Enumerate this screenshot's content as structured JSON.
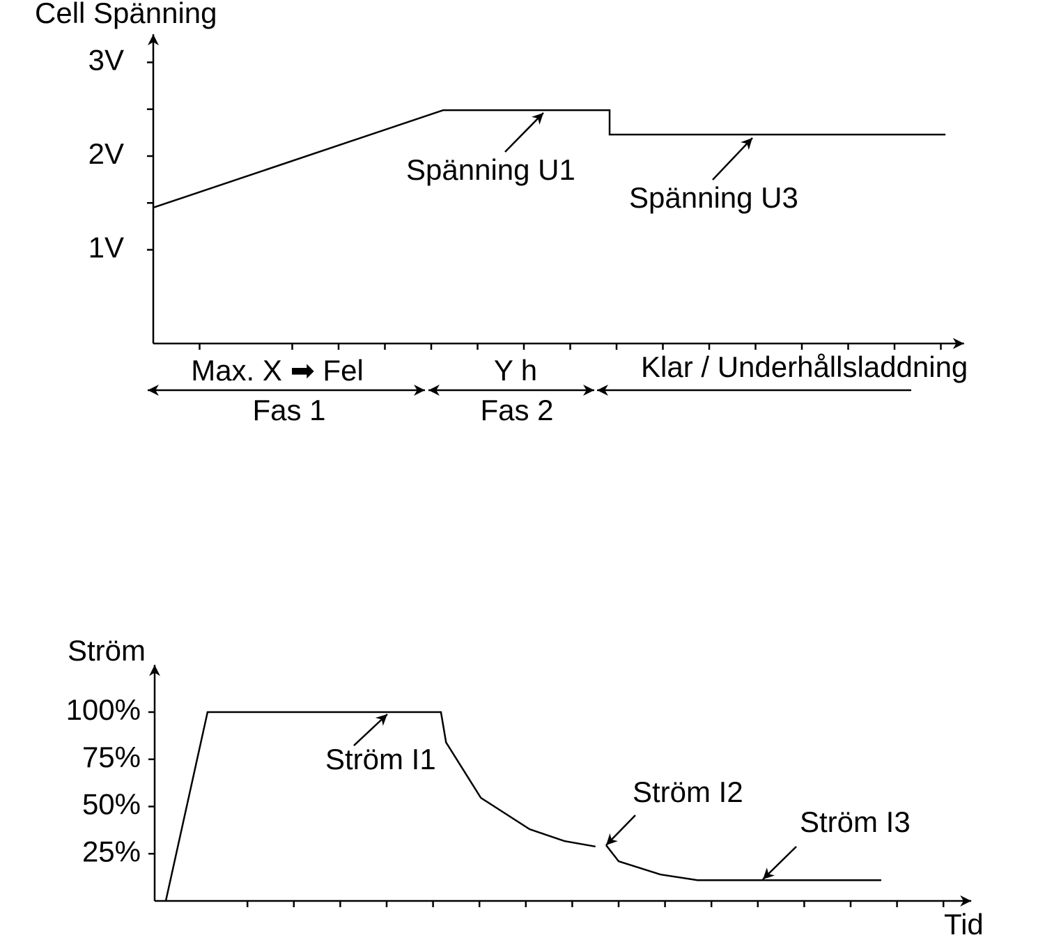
{
  "chart_data": [
    {
      "type": "line",
      "ylabel": "Cell Spänning",
      "x": [
        0,
        6.26,
        9.85,
        9.85,
        17.1
      ],
      "values": [
        1.45,
        2.49,
        2.49,
        2.23,
        2.23
      ],
      "color": "#000000",
      "xlim": [
        0,
        17.5
      ],
      "xticks": [
        1,
        3,
        4,
        5,
        6,
        7,
        8,
        9,
        10,
        11,
        12,
        13,
        14,
        15,
        16,
        17
      ],
      "ylim": [
        0,
        3.3
      ],
      "yticks": [
        {
          "value": 1,
          "label": "1V"
        },
        {
          "value": 2,
          "label": "2V"
        },
        {
          "value": 3,
          "label": "3V"
        }
      ],
      "yminorticks": [
        1.5,
        2.5
      ],
      "annotations": [
        {
          "text": "Spänning  U1"
        },
        {
          "text": "Spänning U3"
        }
      ],
      "phases": [
        {
          "label": "Max. X ➡ Fel",
          "name": "Fas 1"
        },
        {
          "label": "Y h",
          "name": "Fas 2"
        },
        {
          "label": "Klar / Underhållsladdning"
        }
      ]
    },
    {
      "type": "line",
      "ylabel": "Ström",
      "xlabel": "Tid",
      "x": [
        0.24,
        1.14,
        6.17,
        6.28,
        7.03,
        8.08,
        8.83,
        9.5,
        null,
        9.73,
        10.0,
        10.9,
        11.7,
        15.66
      ],
      "values": [
        0,
        100,
        100,
        84,
        54.6,
        38,
        31.7,
        28.8,
        null,
        29.5,
        21,
        14,
        11,
        11
      ],
      "color": "#000000",
      "xlim": [
        0,
        17.6
      ],
      "xticks": [
        2,
        3,
        4,
        5,
        6,
        7,
        8,
        9,
        10,
        11,
        12,
        13,
        14,
        15,
        16,
        17
      ],
      "ylim": [
        0,
        125
      ],
      "yticks": [
        {
          "value": 25,
          "label": "25%"
        },
        {
          "value": 50,
          "label": "50%"
        },
        {
          "value": 75,
          "label": "75%"
        },
        {
          "value": 100,
          "label": "100%"
        }
      ],
      "annotations": [
        {
          "text": "Ström I1"
        },
        {
          "text": "Ström I2"
        },
        {
          "text": "Ström I3"
        }
      ]
    }
  ]
}
